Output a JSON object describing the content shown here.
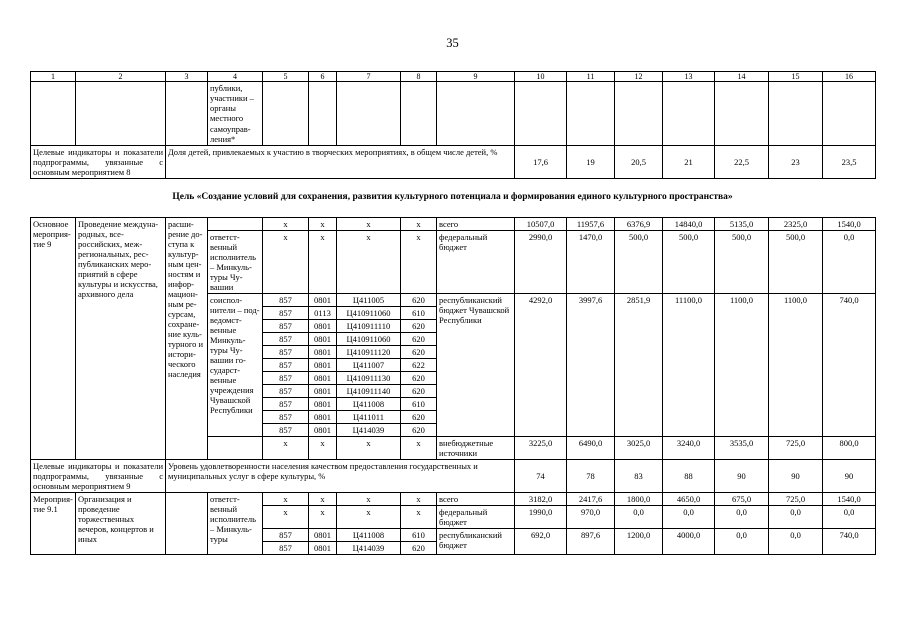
{
  "page": {
    "number": "35"
  },
  "goal_heading": "Цель «Создание условий для сохранения, развития культурного потенциала и формирования единого культурного пространства»",
  "table_top": {
    "rows": [
      [
        {
          "t": "1",
          "cls": "hdr",
          "n": "col-number"
        },
        {
          "t": "2",
          "cls": "hdr",
          "n": "col-number"
        },
        {
          "t": "3",
          "cls": "hdr",
          "n": "col-number"
        },
        {
          "t": "4",
          "cls": "hdr",
          "n": "col-number"
        },
        {
          "t": "5",
          "cls": "hdr",
          "n": "col-number"
        },
        {
          "t": "6",
          "cls": "hdr",
          "n": "col-number"
        },
        {
          "t": "7",
          "cls": "hdr",
          "n": "col-number"
        },
        {
          "t": "8",
          "cls": "hdr",
          "n": "col-number"
        },
        {
          "t": "9",
          "cls": "hdr",
          "n": "col-number"
        },
        {
          "t": "10",
          "cls": "hdr",
          "n": "col-number"
        },
        {
          "t": "11",
          "cls": "hdr",
          "n": "col-number"
        },
        {
          "t": "12",
          "cls": "hdr",
          "n": "col-number"
        },
        {
          "t": "13",
          "cls": "hdr",
          "n": "col-number"
        },
        {
          "t": "14",
          "cls": "hdr",
          "n": "col-number"
        },
        {
          "t": "15",
          "cls": "hdr",
          "n": "col-number"
        },
        {
          "t": "16",
          "cls": "hdr",
          "n": "col-number"
        }
      ],
      [
        {
          "t": ""
        },
        {
          "t": ""
        },
        {
          "t": ""
        },
        {
          "t": "публики, участни­ки – органы местного самоуправ­ления*",
          "cls": "lft",
          "n": "carryover-text"
        },
        {
          "t": ""
        },
        {
          "t": ""
        },
        {
          "t": ""
        },
        {
          "t": ""
        },
        {
          "t": ""
        },
        {
          "t": ""
        },
        {
          "t": ""
        },
        {
          "t": ""
        },
        {
          "t": ""
        },
        {
          "t": ""
        },
        {
          "t": ""
        },
        {
          "t": ""
        }
      ],
      [
        {
          "t": "Целевые индикаторы и показатели подпрограммы, увязанные с основным мероприятием 8",
          "cs": 2,
          "cls": "jst",
          "n": "indicator-label"
        },
        {
          "t": "Доля детей, привлекаемых к участию в творческих мероприятиях, в общем числе детей, %",
          "cs": 7,
          "cls": "lft",
          "n": "indicator-description"
        },
        {
          "t": "17,6",
          "cls": "mid",
          "n": "indicator-value"
        },
        {
          "t": "19",
          "cls": "mid",
          "n": "indicator-value"
        },
        {
          "t": "20,5",
          "cls": "mid",
          "n": "indicator-value"
        },
        {
          "t": "21",
          "cls": "mid",
          "n": "indicator-value"
        },
        {
          "t": "22,5",
          "cls": "mid",
          "n": "indicator-value"
        },
        {
          "t": "23",
          "cls": "mid",
          "n": "indicator-value"
        },
        {
          "t": "23,5",
          "cls": "mid",
          "n": "indicator-value"
        }
      ]
    ]
  },
  "table_main": {
    "rows": [
      [
        {
          "t": "Основ­ное ме­роприя­тие 9",
          "rs": 14,
          "cls": "lft",
          "n": "measure-label"
        },
        {
          "t": "Проведение междуна­родных, все­российских, меж­региональ­ных, рес­публикан­ских меро­приятий в сфере культуры и ис­кусства, ар­хивного дела",
          "rs": 14,
          "cls": "lft",
          "n": "measure-description"
        },
        {
          "t": "расши­рение до­ступа к культур­ным цен­ностям и инфор­мацион­ным ре­сурсам, сохране­ние куль­турного и истори­ческого наследия",
          "rs": 14,
          "cls": "lft",
          "n": "measure-goal"
        },
        {
          "t": ""
        },
        {
          "t": "х",
          "n": "x-mark"
        },
        {
          "t": "х",
          "n": "x-mark"
        },
        {
          "t": "х",
          "n": "x-mark"
        },
        {
          "t": "х",
          "n": "x-mark"
        },
        {
          "t": "всего",
          "cls": "lft",
          "n": "budget-source"
        },
        {
          "t": "10507,0",
          "n": "budget-value"
        },
        {
          "t": "11957,6",
          "n": "budget-value"
        },
        {
          "t": "6376,9",
          "n": "budget-value"
        },
        {
          "t": "14840,0",
          "n": "budget-value"
        },
        {
          "t": "5135,0",
          "n": "budget-value"
        },
        {
          "t": "2325,0",
          "n": "budget-value"
        },
        {
          "t": "1540,0",
          "n": "budget-value"
        }
      ],
      [
        {
          "t": "ответст­венный исполни­тель – Минкуль­туры Чу­вашии",
          "cls": "lft",
          "n": "executor-label"
        },
        {
          "t": "х",
          "n": "x-mark"
        },
        {
          "t": "х",
          "n": "x-mark"
        },
        {
          "t": "х",
          "n": "x-mark"
        },
        {
          "t": "х",
          "n": "x-mark"
        },
        {
          "t": "федеральный бюджет",
          "cls": "lft",
          "n": "budget-source"
        },
        {
          "t": "2990,0",
          "n": "budget-value"
        },
        {
          "t": "1470,0",
          "n": "budget-value"
        },
        {
          "t": "500,0",
          "n": "budget-value"
        },
        {
          "t": "500,0",
          "n": "budget-value"
        },
        {
          "t": "500,0",
          "n": "budget-value"
        },
        {
          "t": "500,0",
          "n": "budget-value"
        },
        {
          "t": "0,0",
          "n": "budget-value"
        }
      ],
      [
        {
          "t": "соиспол­нители – под­ведомст­венные Минкуль­туры Чу­вашии го­сударст­венные учрежде­ния Чуваш­ской Рес­публики",
          "rs": 11,
          "cls": "lft",
          "n": "executor-label"
        },
        {
          "t": "857",
          "n": "budget-code"
        },
        {
          "t": "0801",
          "n": "budget-code"
        },
        {
          "t": "Ц411005",
          "n": "budget-code"
        },
        {
          "t": "620",
          "n": "budget-code"
        },
        {
          "t": "республикан­ский бюджет Чувашской Республики",
          "rs": 11,
          "cls": "lft",
          "n": "budget-source"
        },
        {
          "t": "4292,0",
          "rs": 11,
          "n": "budget-value"
        },
        {
          "t": "3997,6",
          "rs": 11,
          "n": "budget-value"
        },
        {
          "t": "2851,9",
          "rs": 11,
          "n": "budget-value"
        },
        {
          "t": "11100,0",
          "rs": 11,
          "n": "budget-value"
        },
        {
          "t": "1100,0",
          "rs": 11,
          "n": "budget-value"
        },
        {
          "t": "1100,0",
          "rs": 11,
          "n": "budget-value"
        },
        {
          "t": "740,0",
          "rs": 11,
          "n": "budget-value"
        }
      ],
      [
        {
          "t": "857",
          "n": "budget-code"
        },
        {
          "t": "0113",
          "n": "budget-code"
        },
        {
          "t": "Ц410911060",
          "n": "budget-code"
        },
        {
          "t": "610",
          "n": "budget-code"
        }
      ],
      [
        {
          "t": "857",
          "n": "budget-code"
        },
        {
          "t": "0801",
          "n": "budget-code"
        },
        {
          "t": "Ц410911110",
          "n": "budget-code"
        },
        {
          "t": "620",
          "n": "budget-code"
        }
      ],
      [
        {
          "t": "857",
          "n": "budget-code"
        },
        {
          "t": "0801",
          "n": "budget-code"
        },
        {
          "t": "Ц410911060",
          "n": "budget-code"
        },
        {
          "t": "620",
          "n": "budget-code"
        }
      ],
      [
        {
          "t": "857",
          "n": "budget-code"
        },
        {
          "t": "0801",
          "n": "budget-code"
        },
        {
          "t": "Ц410911120",
          "n": "budget-code"
        },
        {
          "t": "620",
          "n": "budget-code"
        }
      ],
      [
        {
          "t": "857",
          "n": "budget-code"
        },
        {
          "t": "0801",
          "n": "budget-code"
        },
        {
          "t": "Ц411007",
          "n": "budget-code"
        },
        {
          "t": "622",
          "n": "budget-code"
        }
      ],
      [
        {
          "t": "857",
          "n": "budget-code"
        },
        {
          "t": "0801",
          "n": "budget-code"
        },
        {
          "t": "Ц410911130",
          "n": "budget-code"
        },
        {
          "t": "620",
          "n": "budget-code"
        }
      ],
      [
        {
          "t": "857",
          "n": "budget-code"
        },
        {
          "t": "0801",
          "n": "budget-code"
        },
        {
          "t": "Ц410911140",
          "n": "budget-code"
        },
        {
          "t": "620",
          "n": "budget-code"
        }
      ],
      [
        {
          "t": "857",
          "n": "budget-code"
        },
        {
          "t": "0801",
          "n": "budget-code"
        },
        {
          "t": "Ц411008",
          "n": "budget-code"
        },
        {
          "t": "610",
          "n": "budget-code"
        }
      ],
      [
        {
          "t": "857",
          "n": "budget-code"
        },
        {
          "t": "0801",
          "n": "budget-code"
        },
        {
          "t": "Ц411011",
          "n": "budget-code"
        },
        {
          "t": "620",
          "n": "budget-code"
        }
      ],
      [
        {
          "t": "857",
          "n": "budget-code"
        },
        {
          "t": "0801",
          "n": "budget-code"
        },
        {
          "t": "Ц414039",
          "n": "budget-code"
        },
        {
          "t": "620",
          "n": "budget-code"
        }
      ],
      [
        {
          "t": ""
        },
        {
          "t": "х",
          "n": "x-mark"
        },
        {
          "t": "х",
          "n": "x-mark"
        },
        {
          "t": "х",
          "n": "x-mark"
        },
        {
          "t": "х",
          "n": "x-mark"
        },
        {
          "t": "внебюджетные источники",
          "cls": "lft",
          "n": "budget-source"
        },
        {
          "t": "3225,0",
          "n": "budget-value"
        },
        {
          "t": "6490,0",
          "n": "budget-value"
        },
        {
          "t": "3025,0",
          "n": "budget-value"
        },
        {
          "t": "3240,0",
          "n": "budget-value"
        },
        {
          "t": "3535,0",
          "n": "budget-value"
        },
        {
          "t": "725,0",
          "n": "budget-value"
        },
        {
          "t": "800,0",
          "n": "budget-value"
        }
      ],
      [
        {
          "t": "Целевые индикаторы и показатели подпрограммы, увязанные с основным мероприятием 9",
          "cs": 2,
          "cls": "jst",
          "n": "indicator-label"
        },
        {
          "t": "Уровень удовлетворенности населения качеством предоставления государственных и муниципальных услуг в сфере культуры, %",
          "cs": 7,
          "cls": "lft",
          "n": "indicator-description"
        },
        {
          "t": "74",
          "cls": "mid",
          "n": "indicator-value"
        },
        {
          "t": "78",
          "cls": "mid",
          "n": "indicator-value"
        },
        {
          "t": "83",
          "cls": "mid",
          "n": "indicator-value"
        },
        {
          "t": "88",
          "cls": "mid",
          "n": "indicator-value"
        },
        {
          "t": "90",
          "cls": "mid",
          "n": "indicator-value"
        },
        {
          "t": "90",
          "cls": "mid",
          "n": "indicator-value"
        },
        {
          "t": "90",
          "cls": "mid",
          "n": "indicator-value"
        }
      ],
      [
        {
          "t": "Меро­прия­тие 9.1",
          "rs": 4,
          "cls": "lft",
          "n": "measure-label"
        },
        {
          "t": "Организация и проведение торжественных вечеров, кон­цертов и иных",
          "rs": 4,
          "cls": "lft",
          "n": "measure-description"
        },
        {
          "t": "",
          "rs": 4
        },
        {
          "t": "ответст­венный исполни­тель – Минкуль­туры",
          "rs": 4,
          "cls": "lft",
          "n": "executor-label"
        },
        {
          "t": "х",
          "n": "x-mark"
        },
        {
          "t": "х",
          "n": "x-mark"
        },
        {
          "t": "х",
          "n": "x-mark"
        },
        {
          "t": "х",
          "n": "x-mark"
        },
        {
          "t": "всего",
          "cls": "lft",
          "n": "budget-source"
        },
        {
          "t": "3182,0",
          "n": "budget-value"
        },
        {
          "t": "2417,6",
          "n": "budget-value"
        },
        {
          "t": "1800,0",
          "n": "budget-value"
        },
        {
          "t": "4650,0",
          "n": "budget-value"
        },
        {
          "t": "675,0",
          "n": "budget-value"
        },
        {
          "t": "725,0",
          "n": "budget-value"
        },
        {
          "t": "1540,0",
          "n": "budget-value"
        }
      ],
      [
        {
          "t": "х",
          "n": "x-mark"
        },
        {
          "t": "х",
          "n": "x-mark"
        },
        {
          "t": "х",
          "n": "x-mark"
        },
        {
          "t": "х",
          "n": "x-mark"
        },
        {
          "t": "федеральный бюджет",
          "cls": "lft",
          "n": "budget-source"
        },
        {
          "t": "1990,0",
          "n": "budget-value"
        },
        {
          "t": "970,0",
          "n": "budget-value"
        },
        {
          "t": "0,0",
          "n": "budget-value"
        },
        {
          "t": "0,0",
          "n": "budget-value"
        },
        {
          "t": "0,0",
          "n": "budget-value"
        },
        {
          "t": "0,0",
          "n": "budget-value"
        },
        {
          "t": "0,0",
          "n": "budget-value"
        }
      ],
      [
        {
          "t": "857",
          "n": "budget-code"
        },
        {
          "t": "0801",
          "n": "budget-code"
        },
        {
          "t": "Ц411008",
          "n": "budget-code"
        },
        {
          "t": "610",
          "n": "budget-code"
        },
        {
          "t": "республикан­ский бюджет",
          "rs": 2,
          "cls": "lft",
          "n": "budget-source"
        },
        {
          "t": "692,0",
          "rs": 2,
          "n": "budget-value"
        },
        {
          "t": "897,6",
          "rs": 2,
          "n": "budget-value"
        },
        {
          "t": "1200,0",
          "rs": 2,
          "n": "budget-value"
        },
        {
          "t": "4000,0",
          "rs": 2,
          "n": "budget-value"
        },
        {
          "t": "0,0",
          "rs": 2,
          "n": "budget-value"
        },
        {
          "t": "0,0",
          "rs": 2,
          "n": "budget-value"
        },
        {
          "t": "740,0",
          "rs": 2,
          "n": "budget-value"
        }
      ],
      [
        {
          "t": "857",
          "n": "budget-code"
        },
        {
          "t": "0801",
          "n": "budget-code"
        },
        {
          "t": "Ц414039",
          "n": "budget-code"
        },
        {
          "t": "620",
          "n": "budget-code"
        }
      ]
    ]
  }
}
